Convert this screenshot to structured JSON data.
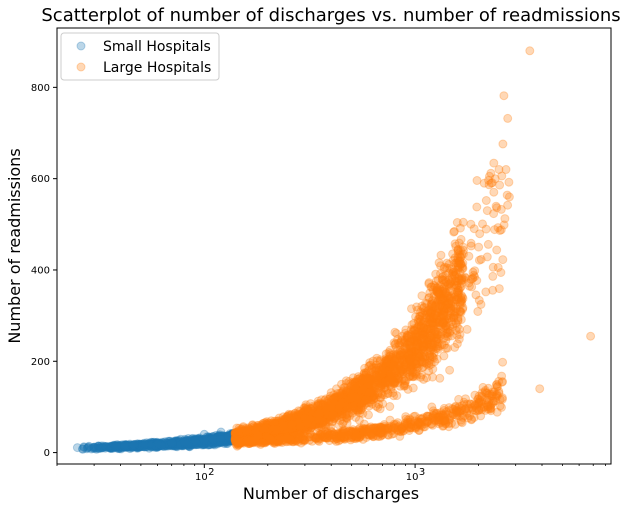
{
  "chart_data": {
    "type": "scatter",
    "title": "Scatterplot of number of discharges vs. number of readmissions",
    "xlabel": "Number of discharges",
    "ylabel": "Number of readmissions",
    "x_scale": "log",
    "xlim": [
      20,
      8500
    ],
    "ylim": [
      -25,
      930
    ],
    "x_ticks": [
      {
        "value": 100,
        "label": "10",
        "exp": "2"
      },
      {
        "value": 1000,
        "label": "10",
        "exp": "3"
      }
    ],
    "y_ticks": [
      0,
      200,
      400,
      600,
      800
    ],
    "grid": false,
    "legend_position": "top-left",
    "series": [
      {
        "name": "Small Hospitals",
        "color": "#1f77b4",
        "alpha": 0.3,
        "x_range": [
          25,
          140
        ],
        "points": [
          [
            25,
            11
          ],
          [
            28,
            11
          ],
          [
            30,
            12
          ],
          [
            32,
            13
          ],
          [
            34,
            13
          ],
          [
            38,
            14
          ],
          [
            42,
            15
          ],
          [
            46,
            16
          ],
          [
            52,
            18
          ],
          [
            60,
            19
          ],
          [
            70,
            21
          ],
          [
            80,
            23
          ],
          [
            90,
            25
          ],
          [
            100,
            27
          ],
          [
            110,
            29
          ],
          [
            120,
            31
          ],
          [
            130,
            34
          ],
          [
            138,
            38
          ],
          [
            100,
            40
          ],
          [
            120,
            45
          ]
        ]
      },
      {
        "name": "Large Hospitals",
        "color": "#ff7f0e",
        "alpha": 0.3,
        "x_range": [
          140,
          7000
        ],
        "points": [
          [
            140,
            30
          ],
          [
            180,
            38
          ],
          [
            220,
            50
          ],
          [
            260,
            60
          ],
          [
            300,
            75
          ],
          [
            350,
            85
          ],
          [
            400,
            100
          ],
          [
            500,
            120
          ],
          [
            600,
            150
          ],
          [
            700,
            180
          ],
          [
            800,
            200
          ],
          [
            900,
            230
          ],
          [
            1000,
            260
          ],
          [
            1100,
            290
          ],
          [
            1200,
            320
          ],
          [
            1400,
            350
          ],
          [
            1600,
            400
          ],
          [
            1800,
            430
          ],
          [
            2000,
            450
          ],
          [
            2200,
            530
          ],
          [
            2300,
            590
          ],
          [
            2400,
            600
          ],
          [
            2500,
            620
          ],
          [
            2700,
            620
          ],
          [
            2800,
            560
          ],
          [
            3500,
            880
          ],
          [
            6800,
            255
          ],
          [
            3900,
            140
          ],
          [
            2600,
            198
          ],
          [
            2500,
            130
          ],
          [
            1200,
            100
          ],
          [
            1000,
            80
          ],
          [
            800,
            60
          ],
          [
            600,
            40
          ]
        ]
      }
    ]
  }
}
